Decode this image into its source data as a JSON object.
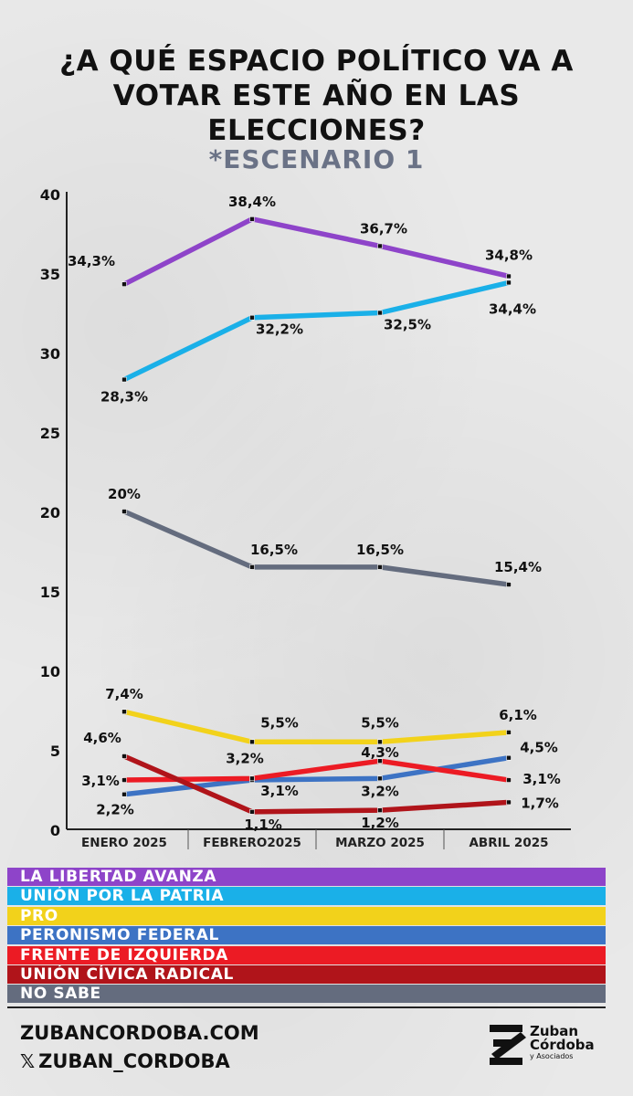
{
  "header": {
    "title_line1": "¿A QUÉ ESPACIO POLÍTICO VA A",
    "title_line2": "VOTAR ESTE AÑO EN LAS",
    "title_line3": "ELECCIONES?",
    "subtitle": "*ESCENARIO 1"
  },
  "chart_data": {
    "type": "line",
    "title": "¿A QUÉ ESPACIO POLÍTICO VA A VOTAR ESTE AÑO EN LAS ELECCIONES?",
    "subtitle": "*ESCENARIO 1",
    "categories": [
      "ENERO 2025",
      "FEBRERO2025",
      "MARZO 2025",
      "ABRIL 2025"
    ],
    "yticks": [
      "0",
      "5",
      "10",
      "15",
      "20",
      "25",
      "30",
      "35",
      "40"
    ],
    "ylim": [
      0,
      40
    ],
    "series": [
      {
        "name": "LA LIBERTAD AVANZA",
        "color": "#8e44c9",
        "values": [
          34.3,
          38.4,
          36.7,
          34.8
        ],
        "labels": [
          "34,3%",
          "38,4%",
          "36,7%",
          "34,8%"
        ]
      },
      {
        "name": "UNIÓN POR LA PATRIA",
        "color": "#1ab0e8",
        "values": [
          28.3,
          32.2,
          32.5,
          34.4
        ],
        "labels": [
          "28,3%",
          "32,2%",
          "32,5%",
          "34,4%"
        ]
      },
      {
        "name": "PRO",
        "color": "#f2d21b",
        "values": [
          7.4,
          5.5,
          5.5,
          6.1
        ],
        "labels": [
          "7,4%",
          "5,5%",
          "5,5%",
          "6,1%"
        ]
      },
      {
        "name": "PERONISMO FEDERAL",
        "color": "#3d73c4",
        "values": [
          2.2,
          3.1,
          3.2,
          4.5
        ],
        "labels": [
          "2,2%",
          "3,1%",
          "3,2%",
          "4,5%"
        ]
      },
      {
        "name": "FRENTE DE IZQUIERDA",
        "color": "#ec1b24",
        "values": [
          3.1,
          3.2,
          4.3,
          3.1
        ],
        "labels": [
          "3,1%",
          "3,2%",
          "4,3%",
          "3,1%"
        ]
      },
      {
        "name": "UNIÓN CÍVICA RADICAL",
        "color": "#b0141a",
        "values": [
          4.6,
          1.1,
          1.2,
          1.7
        ],
        "labels": [
          "4,6%",
          "1,1%",
          "1,2%",
          "1,7%"
        ]
      },
      {
        "name": "NO SABE",
        "color": "#646c7e",
        "values": [
          20,
          16.5,
          16.5,
          15.4
        ],
        "labels": [
          "20%",
          "16,5%",
          "16,5%",
          "15,4%"
        ]
      }
    ]
  },
  "footer": {
    "website": "ZUBANCORDOBA.COM",
    "x_symbol": "𝕏",
    "social_handle": "ZUBAN_CORDOBA",
    "logo_line1": "Zuban",
    "logo_line2": "Córdoba",
    "logo_line3": "y Asociados"
  }
}
